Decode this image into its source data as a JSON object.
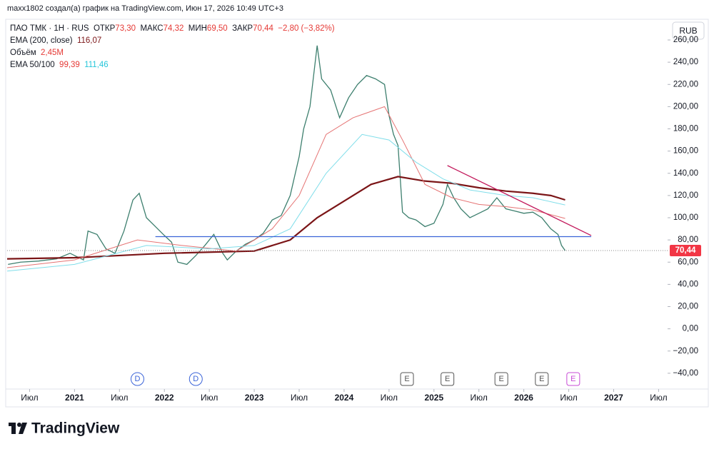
{
  "chart_data": {
    "type": "line",
    "attribution": "maxx1802 создал(а) график на TradingView.com, Июн 17, 2026 10:49 UTC+3",
    "legend": {
      "symbol": "ПАО ТМК · 1Н · RUS",
      "open_label": "ОТКР",
      "open": "73,30",
      "high_label": "МАКС",
      "high": "74,32",
      "low_label": "МИН",
      "low": "69,50",
      "close_label": "ЗАКР",
      "close": "70,44",
      "change": "−2,80 (−3,82%)",
      "ema200_label": "EMA (200, close)",
      "ema200": "116,07",
      "volume_label": "Объём",
      "volume": "2,45M",
      "ema_label": "EMA 50/100",
      "ema50": "99,39",
      "ema100": "111,46"
    },
    "currency": "RUB",
    "logo": "TradingView",
    "xlim": [
      2020.25,
      2027.6
    ],
    "ylim": [
      -51,
      278
    ],
    "grid": false,
    "xticks": [
      {
        "value": 2020.5,
        "label": "Июл"
      },
      2021,
      {
        "value": 2021.5,
        "label": "Июл"
      },
      2022,
      {
        "value": 2022.5,
        "label": "Июл"
      },
      2023,
      {
        "value": 2023.5,
        "label": "Июл"
      },
      2024,
      {
        "value": 2024.5,
        "label": "Июл"
      },
      2025,
      {
        "value": 2025.5,
        "label": "Июл"
      },
      2026,
      {
        "value": 2026.5,
        "label": "Июл"
      },
      2027,
      {
        "value": 2027.5,
        "label": "Июл"
      }
    ],
    "yticks": [
      {
        "value": -40,
        "label": "−40,00"
      },
      {
        "value": -20,
        "label": "−20,00"
      },
      {
        "value": 0,
        "label": "0,00"
      },
      {
        "value": 20,
        "label": "20,00"
      },
      {
        "value": 40,
        "label": "40,00"
      },
      {
        "value": 60,
        "label": "60,00"
      },
      {
        "value": 80,
        "label": "80,00"
      },
      {
        "value": 100,
        "label": "100,00"
      },
      {
        "value": 120,
        "label": "120,00"
      },
      {
        "value": 140,
        "label": "140,00"
      },
      {
        "value": 160,
        "label": "160,00"
      },
      {
        "value": 180,
        "label": "180,00"
      },
      {
        "value": 200,
        "label": "200,00"
      },
      {
        "value": 220,
        "label": "220,00"
      },
      {
        "value": 240,
        "label": "240,00"
      },
      {
        "value": 260,
        "label": "260,00"
      }
    ],
    "last_price": {
      "value": 70.44,
      "label": "70,44"
    },
    "series": [
      {
        "name": "ПАО ТМК",
        "color": "#3d7f6e",
        "x": [
          2020.26,
          2020.4,
          2020.6,
          2020.8,
          2020.95,
          2021.1,
          2021.15,
          2021.25,
          2021.35,
          2021.45,
          2021.55,
          2021.65,
          2021.72,
          2021.8,
          2021.9,
          2022.0,
          2022.08,
          2022.15,
          2022.25,
          2022.35,
          2022.45,
          2022.55,
          2022.65,
          2022.7,
          2022.8,
          2022.9,
          2023.0,
          2023.1,
          2023.2,
          2023.3,
          2023.4,
          2023.5,
          2023.55,
          2023.62,
          2023.7,
          2023.75,
          2023.85,
          2023.95,
          2024.05,
          2024.15,
          2024.25,
          2024.35,
          2024.45,
          2024.5,
          2024.55,
          2024.6,
          2024.65,
          2024.72,
          2024.8,
          2024.9,
          2025.0,
          2025.1,
          2025.15,
          2025.22,
          2025.3,
          2025.4,
          2025.5,
          2025.6,
          2025.7,
          2025.8,
          2025.9,
          2026.0,
          2026.1,
          2026.2,
          2026.3,
          2026.38,
          2026.42,
          2026.46
        ],
        "values": [
          58,
          60,
          61,
          63,
          68,
          62,
          88,
          85,
          72,
          68,
          88,
          116,
          122,
          100,
          92,
          84,
          78,
          60,
          58,
          66,
          75,
          85,
          68,
          62,
          70,
          76,
          80,
          86,
          98,
          102,
          120,
          155,
          180,
          200,
          255,
          225,
          215,
          190,
          208,
          220,
          228,
          225,
          220,
          192,
          175,
          165,
          105,
          100,
          98,
          92,
          95,
          112,
          130,
          118,
          108,
          100,
          104,
          108,
          118,
          108,
          106,
          104,
          105,
          100,
          90,
          85,
          75,
          70.44
        ]
      },
      {
        "name": "EMA 200",
        "color": "#7b1517",
        "x": [
          2020.25,
          2021.0,
          2022.0,
          2023.0,
          2023.4,
          2023.7,
          2024.0,
          2024.3,
          2024.6,
          2024.9,
          2025.2,
          2025.5,
          2025.8,
          2026.1,
          2026.3,
          2026.46
        ],
        "values": [
          63,
          64,
          68,
          70,
          80,
          100,
          115,
          130,
          137,
          133,
          131,
          127,
          124,
          122,
          120,
          116.07
        ]
      },
      {
        "name": "EMA 50",
        "color": "#e57373",
        "x": [
          2020.25,
          2021.0,
          2021.7,
          2022.2,
          2022.8,
          2023.2,
          2023.5,
          2023.8,
          2024.1,
          2024.45,
          2024.65,
          2024.9,
          2025.2,
          2025.5,
          2025.8,
          2026.1,
          2026.46
        ],
        "values": [
          55,
          62,
          80,
          75,
          70,
          90,
          120,
          175,
          190,
          200,
          170,
          130,
          118,
          112,
          110,
          107,
          99.39
        ]
      },
      {
        "name": "EMA 100",
        "color": "#80deea",
        "x": [
          2020.25,
          2021.0,
          2021.8,
          2022.5,
          2023.0,
          2023.4,
          2023.8,
          2024.2,
          2024.5,
          2024.8,
          2025.1,
          2025.4,
          2025.8,
          2026.1,
          2026.46
        ],
        "values": [
          52,
          58,
          75,
          72,
          75,
          90,
          140,
          175,
          170,
          150,
          135,
          125,
          120,
          118,
          111.46
        ]
      }
    ],
    "lines": [
      {
        "color": "#3a63d8",
        "x": [
          2021.9,
          2026.75
        ],
        "values": [
          83,
          83
        ]
      },
      {
        "color": "#c2185b",
        "x": [
          2025.15,
          2026.75
        ],
        "values": [
          147,
          84
        ]
      }
    ],
    "events": [
      {
        "x": 2021.7,
        "label": "D",
        "color": "#3a63d8"
      },
      {
        "x": 2022.35,
        "label": "D",
        "color": "#3a63d8"
      },
      {
        "x": 2024.7,
        "label": "E",
        "color": "#555"
      },
      {
        "x": 2025.15,
        "label": "E",
        "color": "#555"
      },
      {
        "x": 2025.75,
        "label": "E",
        "color": "#555"
      },
      {
        "x": 2026.2,
        "label": "E",
        "color": "#555"
      },
      {
        "x": 2026.55,
        "label": "E",
        "color": "#c74bd6"
      }
    ]
  }
}
